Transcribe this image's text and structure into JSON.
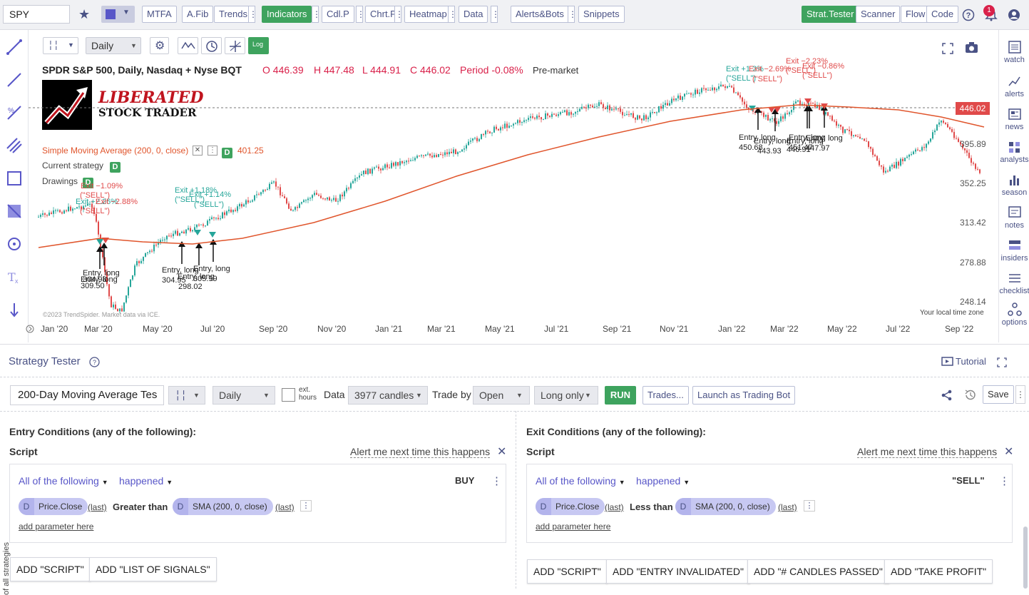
{
  "toolbar": {
    "symbol": "SPY",
    "buttons": [
      "MTFA",
      "A.Fib",
      "Trends",
      "Indicators",
      "Cdl.P",
      "Chrt.P",
      "Heatmap",
      "Data",
      "Alerts&Bots",
      "Snippets"
    ],
    "right_buttons": [
      "Strat.Tester",
      "Scanner",
      "Flow",
      "Code"
    ],
    "notification_count": "1",
    "accent": "#3ea35e"
  },
  "chart": {
    "timeframe": "Daily",
    "log_label": "Log",
    "title": "SPDR S&P 500, Daily, Nasdaq + Nyse BQT",
    "ohlc": {
      "o": "O 446.39",
      "h": "H 447.48",
      "l": "L 444.91",
      "c": "C 446.02",
      "period": "Period -0.08%"
    },
    "session": "Pre-market",
    "logo_line1": "LIBERATED",
    "logo_line2": "STOCK TRADER",
    "sma_label": "Simple Moving Average (200, 0, close)",
    "sma_value": "401.25",
    "current_strategy": "Current strategy",
    "drawings": "Drawings",
    "badge": "D",
    "price_tag": "446.02",
    "copyright": "©2023 TrendSpider. Market data via ICE.",
    "timezone": "Your local time zone",
    "price_ticks": [
      "395.89",
      "352.25",
      "313.42",
      "278.88",
      "248.14"
    ],
    "date_ticks": [
      "Jan '20",
      "Mar '20",
      "May '20",
      "Jul '20",
      "Sep '20",
      "Nov '20",
      "Jan '21",
      "Mar '21",
      "May '21",
      "Jul '21",
      "Sep '21",
      "Nov '21",
      "Jan '22",
      "Mar '22",
      "May '22",
      "Jul '22",
      "Sep '22"
    ],
    "markers": [
      {
        "text": "Exit −1.09%"
      },
      {
        "text": "(\"SELL\")"
      },
      {
        "text": "Exit +2.26%"
      },
      {
        "text": "Exit −2.88%"
      },
      {
        "text": "(\"SELL\")"
      },
      {
        "text": "Exit +1.18%"
      },
      {
        "text": "(\"SELL\")"
      },
      {
        "text": "Exit +1.14%"
      },
      {
        "text": "(\"SELL\")"
      },
      {
        "text": "Entry, long"
      },
      {
        "text": "Entry, long"
      },
      {
        "text": "304.98"
      },
      {
        "text": "309.50"
      },
      {
        "text": "Entry, long"
      },
      {
        "text": "304.95"
      },
      {
        "text": "Entry, long"
      },
      {
        "text": "298.02"
      },
      {
        "text": "Entry, long"
      },
      {
        "text": "305.99"
      },
      {
        "text": "Exit +1.2%"
      },
      {
        "text": "(\"SELL\")"
      },
      {
        "text": "Exit −2.69%"
      },
      {
        "text": "(\"SELL\")"
      },
      {
        "text": "Exit −2.23%"
      },
      {
        "text": "(\"SELL\")"
      },
      {
        "text": "Exit −0.86%"
      },
      {
        "text": "(\"SELL\")"
      },
      {
        "text": "Entry, long"
      },
      {
        "text": "450.68"
      },
      {
        "text": "Entry, long"
      },
      {
        "text": "443.93"
      },
      {
        "text": "Entry, long"
      },
      {
        "text": "451.47"
      },
      {
        "text": "Entry, long"
      },
      {
        "text": "446.91"
      },
      {
        "text": "Entry, long"
      },
      {
        "text": "447.97"
      }
    ]
  },
  "sidebar": {
    "items": [
      "watch",
      "alerts",
      "news",
      "analysts",
      "season",
      "notes",
      "insiders",
      "checklist",
      "options"
    ]
  },
  "strategy": {
    "title": "Strategy Tester",
    "tutorial": "Tutorial",
    "name": "200-Day Moving Average Tes",
    "timeframe": "Daily",
    "ext_hours": "ext. hours",
    "data_label": "Data",
    "data_value": "3977 candles",
    "trade_by_label": "Trade by",
    "trade_by": "Open",
    "direction": "Long only",
    "run": "RUN",
    "trades": "Trades...",
    "launch": "Launch as Trading Bot",
    "save": "Save",
    "vertical_tab": "of all strategies",
    "entry": {
      "heading": "Entry Conditions (any of the following):",
      "script": "Script",
      "alert": "Alert me next time this happens",
      "all_of": "All of the following",
      "happened": "happened",
      "signal": "BUY",
      "chip1": "Price.Close",
      "last1": "(last)",
      "op": "Greater than",
      "chip2": "SMA (200, 0, close)",
      "last2": "(last)",
      "add_param": "add parameter here",
      "buttons": [
        "ADD \"SCRIPT\"",
        "ADD \"LIST OF SIGNALS\""
      ]
    },
    "exit": {
      "heading": "Exit Conditions (any of the following):",
      "script": "Script",
      "alert": "Alert me next time this happens",
      "all_of": "All of the following",
      "happened": "happened",
      "signal": "\"SELL\"",
      "chip1": "Price.Close",
      "last1": "(last)",
      "op": "Less than",
      "chip2": "SMA (200, 0, close)",
      "last2": "(last)",
      "add_param": "add parameter here",
      "buttons": [
        "ADD \"SCRIPT\"",
        "ADD \"ENTRY INVALIDATED\"",
        "ADD \"# CANDLES PASSED\"",
        "ADD \"TAKE PROFIT\""
      ]
    }
  }
}
